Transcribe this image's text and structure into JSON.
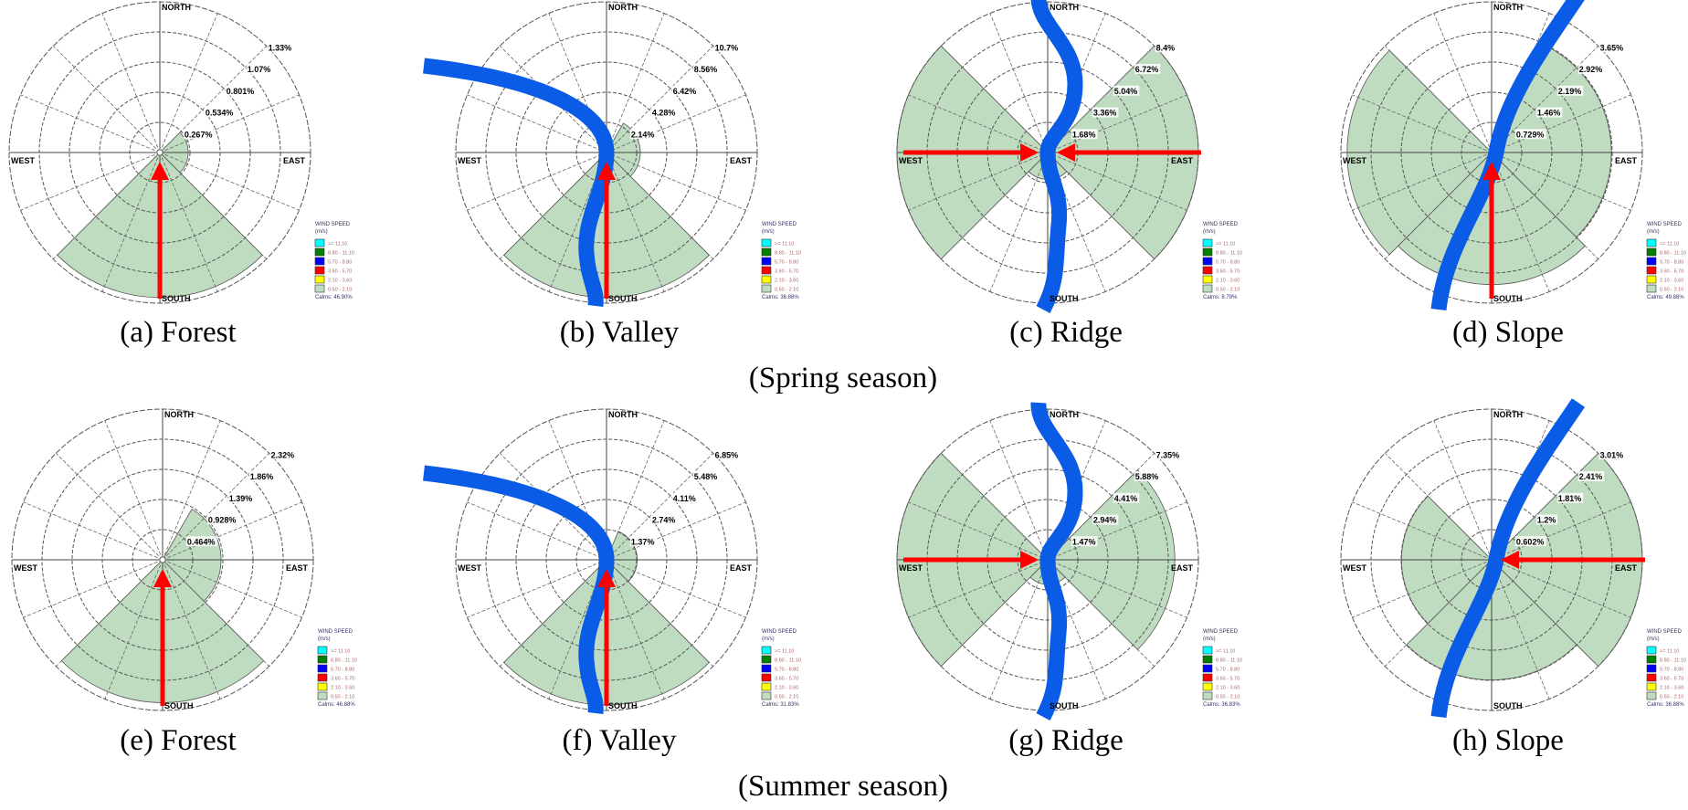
{
  "compass": {
    "north": "NORTH",
    "south": "SOUTH",
    "east": "EAST",
    "west": "WEST"
  },
  "legend": {
    "title": "WIND SPEED",
    "unit": "(m/s)",
    "bins": [
      {
        "label": ">= 11.10",
        "color": "#00ffff"
      },
      {
        "label": "8.80 - 11.10",
        "color": "#008000"
      },
      {
        "label": "5.70 - 8.80",
        "color": "#0000ff"
      },
      {
        "label": "3.60 - 5.70",
        "color": "#ff0000"
      },
      {
        "label": "2.10 - 3.60",
        "color": "#ffff00"
      },
      {
        "label": "0.50 - 2.10",
        "color": "#c0dcc0"
      }
    ]
  },
  "colors": {
    "wedge": "#c0dcc0",
    "river": "#0a5ce6",
    "arrow": "#ff0000"
  },
  "seasons": {
    "spring": "(Spring season)",
    "summer": "(Summer season)"
  },
  "chart_data": [
    {
      "type": "wind-rose",
      "caption": "(a) Forest",
      "season": "spring",
      "ring_labels": [
        "0.267%",
        "0.534%",
        "0.801%",
        "1.07%",
        "1.33%"
      ],
      "max": 1.33,
      "sectors": [
        {
          "from": 45,
          "to": 135,
          "value": 0.25
        },
        {
          "from": 135,
          "to": 225,
          "value": 1.28
        }
      ],
      "calms": "Calms: 46.90%",
      "arrows": [
        "south"
      ]
    },
    {
      "type": "wind-rose",
      "caption": "(b) Valley",
      "season": "spring",
      "ring_labels": [
        "2.14%",
        "4.28%",
        "6.42%",
        "8.56%",
        "10.7%"
      ],
      "max": 10.7,
      "sectors": [
        {
          "from": 30,
          "to": 135,
          "value": 2.4
        },
        {
          "from": 135,
          "to": 225,
          "value": 10.3
        }
      ],
      "calms": "Calms: 36.88%",
      "arrows": [
        "south"
      ]
    },
    {
      "type": "wind-rose",
      "caption": "(c) Ridge",
      "season": "spring",
      "ring_labels": [
        "1.68%",
        "3.36%",
        "5.04%",
        "6.72%",
        "8.4%"
      ],
      "max": 8.4,
      "sectors": [
        {
          "from": 45,
          "to": 135,
          "value": 8.4
        },
        {
          "from": 135,
          "to": 225,
          "value": 1.5
        },
        {
          "from": 225,
          "to": 315,
          "value": 8.4
        }
      ],
      "calms": "Calms: 8.79%",
      "arrows": [
        "west",
        "east"
      ]
    },
    {
      "type": "wind-rose",
      "caption": "(d) Slope",
      "season": "spring",
      "ring_labels": [
        "0.729%",
        "1.46%",
        "2.19%",
        "2.92%",
        "3.65%"
      ],
      "max": 3.65,
      "sectors": [
        {
          "from": 25,
          "to": 135,
          "value": 2.9
        },
        {
          "from": 135,
          "to": 225,
          "value": 3.2
        },
        {
          "from": 225,
          "to": 315,
          "value": 3.5
        }
      ],
      "calms": "Calms: 49.88%",
      "arrows": [
        "south"
      ]
    },
    {
      "type": "wind-rose",
      "caption": "(e) Forest",
      "season": "summer",
      "ring_labels": [
        "0.464%",
        "0.928%",
        "1.39%",
        "1.86%",
        "2.32%"
      ],
      "max": 2.32,
      "sectors": [
        {
          "from": 30,
          "to": 150,
          "value": 0.9
        },
        {
          "from": 135,
          "to": 225,
          "value": 2.2
        }
      ],
      "calms": "Calms: 46.88%",
      "arrows": [
        "south"
      ]
    },
    {
      "type": "wind-rose",
      "caption": "(f) Valley",
      "season": "summer",
      "ring_labels": [
        "1.37%",
        "2.74%",
        "4.11%",
        "5.48%",
        "6.85%"
      ],
      "max": 6.85,
      "sectors": [
        {
          "from": 22.5,
          "to": 135,
          "value": 1.4
        },
        {
          "from": 135,
          "to": 225,
          "value": 6.6
        }
      ],
      "calms": "Calms: 31.83%",
      "arrows": [
        "south"
      ]
    },
    {
      "type": "wind-rose",
      "caption": "(g) Ridge",
      "season": "summer",
      "ring_labels": [
        "1.47%",
        "2.94%",
        "4.41%",
        "5.88%",
        "7.35%"
      ],
      "max": 7.35,
      "sectors": [
        {
          "from": 45,
          "to": 135,
          "value": 6.2
        },
        {
          "from": 135,
          "to": 225,
          "value": 1.2
        },
        {
          "from": 225,
          "to": 315,
          "value": 7.35
        }
      ],
      "calms": "Calms: 36.83%",
      "arrows": [
        "west"
      ]
    },
    {
      "type": "wind-rose",
      "caption": "(h) Slope",
      "season": "summer",
      "ring_labels": [
        "0.602%",
        "1.2%",
        "1.81%",
        "2.41%",
        "3.01%"
      ],
      "max": 3.01,
      "sectors": [
        {
          "from": 45,
          "to": 135,
          "value": 3.01
        },
        {
          "from": 135,
          "to": 225,
          "value": 2.4
        },
        {
          "from": 225,
          "to": 315,
          "value": 1.8
        }
      ],
      "calms": "Calms: 36.88%",
      "arrows": [
        "east"
      ]
    }
  ]
}
